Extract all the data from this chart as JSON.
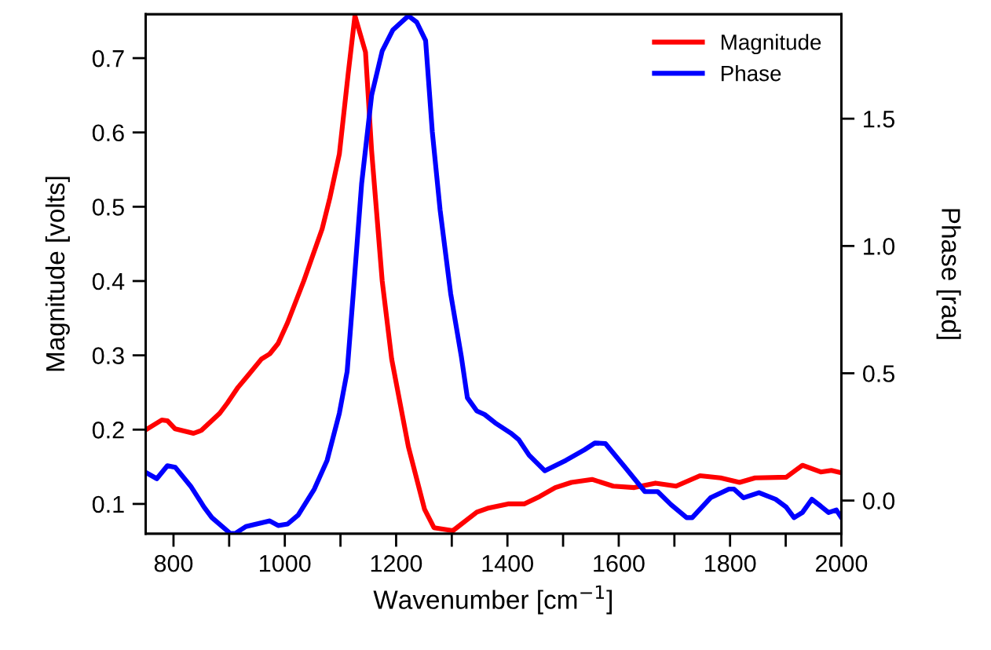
{
  "chart_data": {
    "type": "line",
    "xlabel": "Wavenumber [cm$^{−1}$]",
    "ylabel": "Magnitude [volts]",
    "y2label": "Phase [rad]",
    "legend": "top right",
    "grid": false,
    "marker": "none",
    "line_style": "solid",
    "xlim": [
      750,
      2000
    ],
    "xticks": [
      {
        "value": 800,
        "label": "800"
      },
      {
        "value": 900,
        "label": null
      },
      {
        "value": 1000,
        "label": "1000"
      },
      {
        "value": 1100,
        "label": null
      },
      {
        "value": 1200,
        "label": "1200"
      },
      {
        "value": 1300,
        "label": null
      },
      {
        "value": 1400,
        "label": "1400"
      },
      {
        "value": 1500,
        "label": null
      },
      {
        "value": 1600,
        "label": "1600"
      },
      {
        "value": 1700,
        "label": null
      },
      {
        "value": 1800,
        "label": "1800"
      },
      {
        "value": 1900,
        "label": null
      },
      {
        "value": 2000,
        "label": "2000"
      }
    ],
    "ylim": [
      0.06,
      0.759
    ],
    "yticks": [
      0.1,
      0.2,
      0.3,
      0.4,
      0.5,
      0.6,
      0.7
    ],
    "y2lim": [
      -0.13,
      1.91
    ],
    "y2ticks": [
      {
        "value": 0,
        "label": "0.0"
      },
      {
        "value": 0.5,
        "label": "0.5"
      },
      {
        "value": 1,
        "label": "1.0"
      },
      {
        "value": 1.5,
        "label": "1.5"
      }
    ],
    "series": [
      {
        "name": "Magnitude",
        "color": "#ff0000",
        "x": [
          753,
          779,
          789,
          803,
          836,
          850,
          883,
          897,
          916,
          935,
          958,
          973,
          988,
          1005,
          1034,
          1067,
          1081,
          1098,
          1114,
          1126,
          1145,
          1156,
          1175,
          1192,
          1222,
          1251,
          1268,
          1302,
          1345,
          1364,
          1401,
          1430,
          1458,
          1486,
          1515,
          1552,
          1590,
          1628,
          1666,
          1703,
          1746,
          1783,
          1817,
          1845,
          1901,
          1930,
          1963,
          1982,
          2000
        ],
        "values": [
          0.201,
          0.213,
          0.212,
          0.201,
          0.195,
          0.199,
          0.222,
          0.236,
          0.257,
          0.274,
          0.295,
          0.302,
          0.316,
          0.344,
          0.4,
          0.47,
          0.512,
          0.571,
          0.68,
          0.757,
          0.708,
          0.575,
          0.4,
          0.295,
          0.177,
          0.093,
          0.068,
          0.064,
          0.089,
          0.094,
          0.1,
          0.1,
          0.11,
          0.122,
          0.129,
          0.133,
          0.124,
          0.122,
          0.128,
          0.124,
          0.138,
          0.135,
          0.129,
          0.135,
          0.136,
          0.152,
          0.143,
          0.145,
          0.142
        ]
      },
      {
        "name": "Phase",
        "color": "#0000ff",
        "axis": "y2",
        "x": [
          753,
          770,
          789,
          803,
          831,
          855,
          869,
          902,
          911,
          930,
          973,
          988,
          1005,
          1024,
          1053,
          1076,
          1098,
          1112,
          1123,
          1138,
          1156,
          1175,
          1194,
          1222,
          1237,
          1253,
          1265,
          1279,
          1298,
          1317,
          1328,
          1345,
          1359,
          1378,
          1406,
          1420,
          1439,
          1467,
          1505,
          1538,
          1557,
          1576,
          1609,
          1647,
          1670,
          1694,
          1722,
          1732,
          1765,
          1798,
          1807,
          1824,
          1852,
          1882,
          1901,
          1915,
          1930,
          1947,
          1963,
          1977,
          1991,
          2000
        ],
        "values": [
          0.107,
          0.086,
          0.137,
          0.131,
          0.056,
          -0.026,
          -0.067,
          -0.129,
          -0.129,
          -0.102,
          -0.08,
          -0.098,
          -0.092,
          -0.057,
          0.045,
          0.158,
          0.343,
          0.507,
          0.813,
          1.244,
          1.592,
          1.766,
          1.848,
          1.904,
          1.879,
          1.807,
          1.449,
          1.142,
          0.813,
          0.568,
          0.404,
          0.352,
          0.338,
          0.305,
          0.265,
          0.24,
          0.178,
          0.117,
          0.158,
          0.199,
          0.226,
          0.224,
          0.137,
          0.035,
          0.035,
          -0.016,
          -0.067,
          -0.067,
          0.011,
          0.045,
          0.045,
          0.011,
          0.031,
          0.005,
          -0.026,
          -0.067,
          -0.047,
          0.005,
          -0.022,
          -0.047,
          -0.037,
          -0.067
        ]
      }
    ]
  }
}
